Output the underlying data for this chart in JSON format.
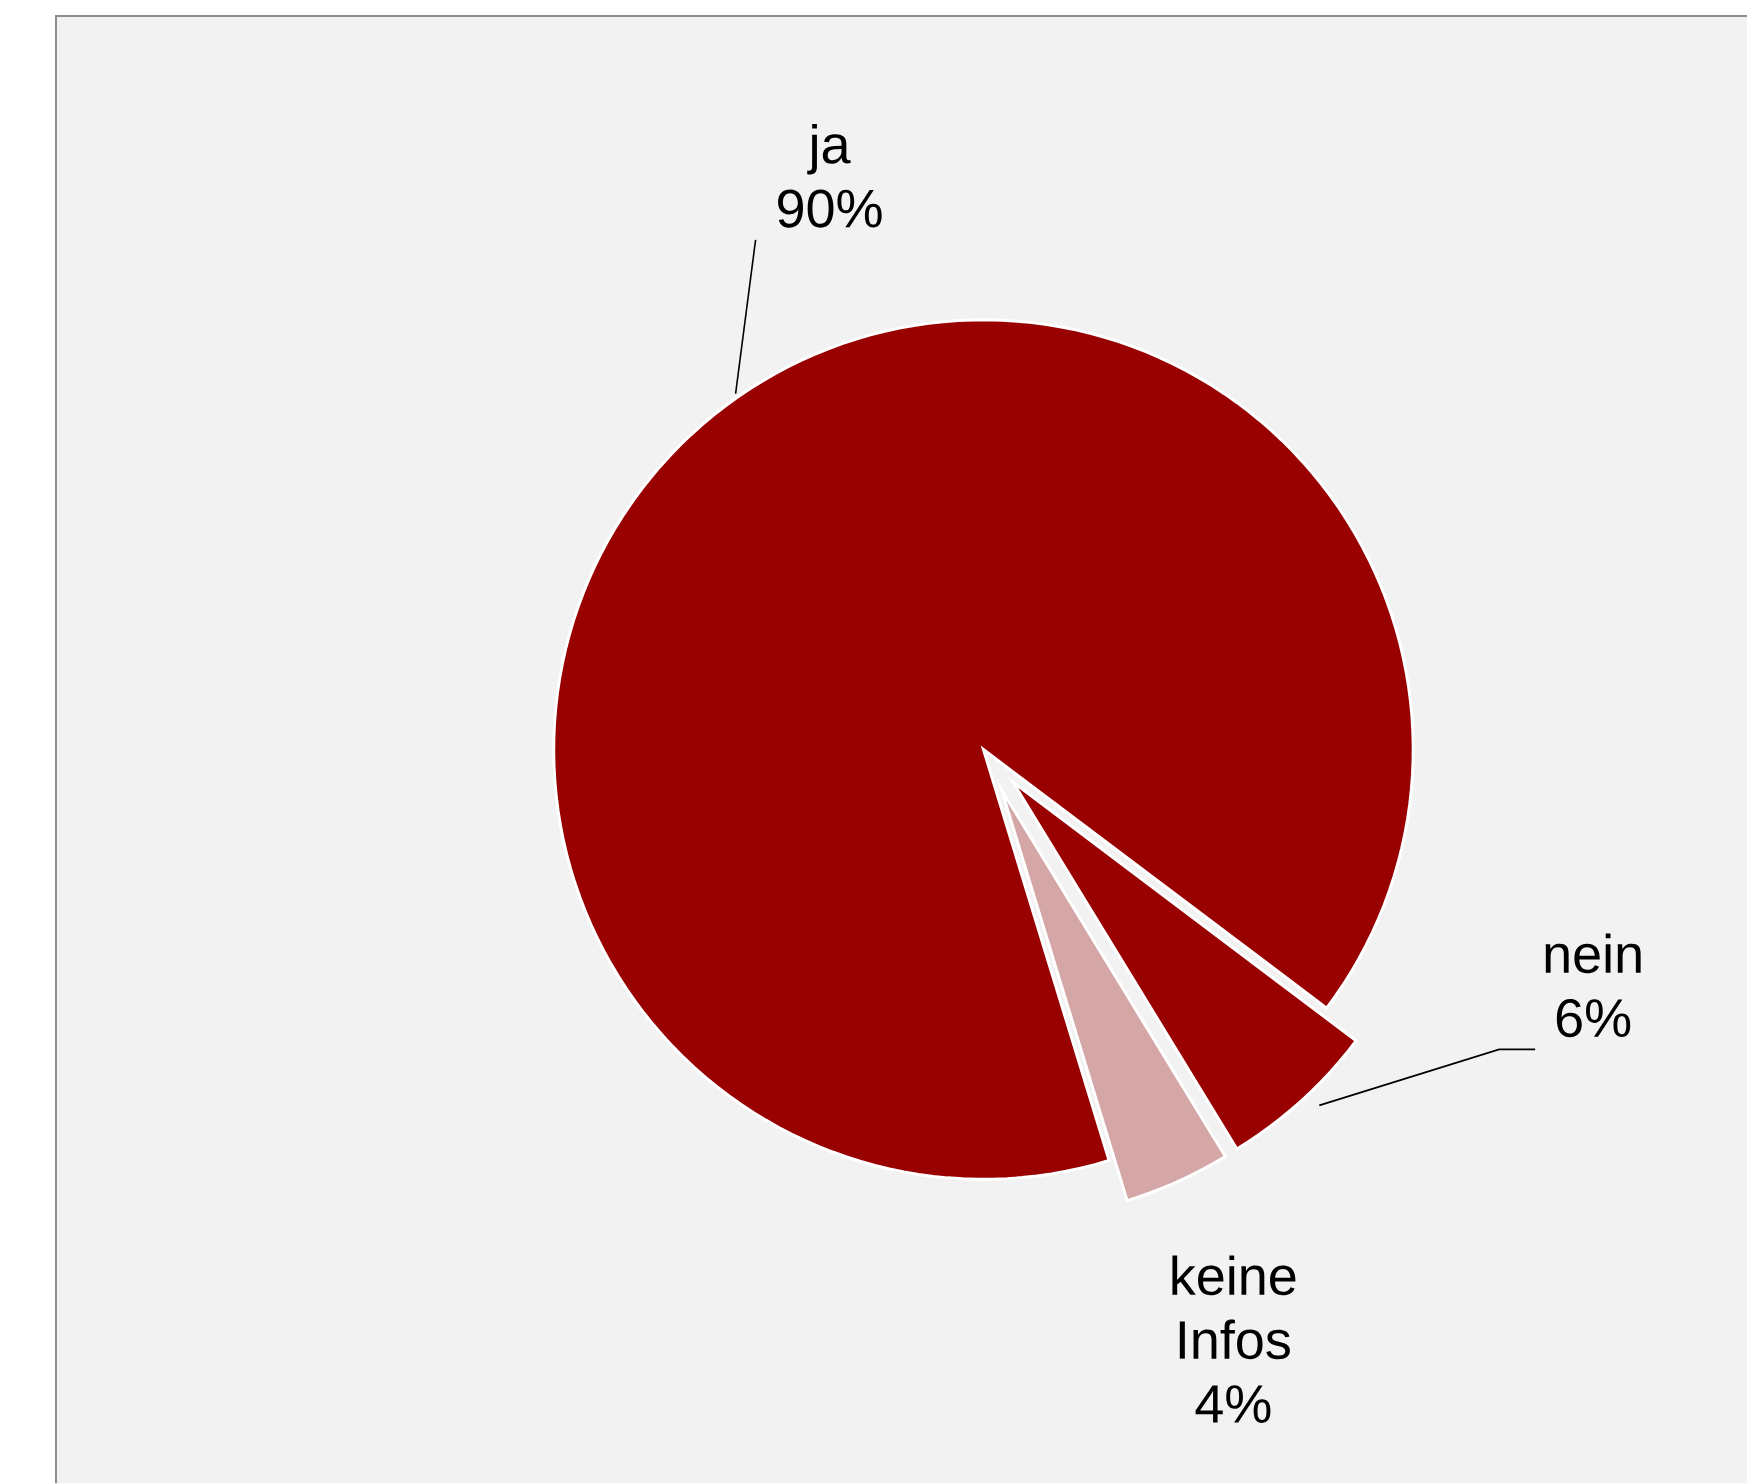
{
  "chart_data": {
    "type": "pie",
    "categories": [
      "ja",
      "nein",
      "keine Infos"
    ],
    "values": [
      90,
      6,
      4
    ],
    "value_labels": [
      "90%",
      "6%",
      "4%"
    ],
    "colors": [
      "#990000",
      "#990000",
      "#d5a6a6"
    ]
  }
}
